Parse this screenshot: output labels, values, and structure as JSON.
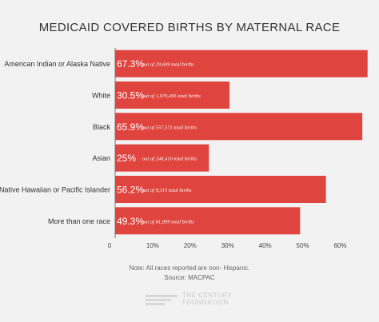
{
  "chart_data": {
    "type": "bar",
    "orientation": "horizontal",
    "title": "MEDICAID COVERED BIRTHS BY MATERNAL RACE",
    "categories": [
      "American Indian or Alaska Native",
      "White",
      "Black",
      "Asian",
      "Native Hawaiian or Pacific Islander",
      "More than one race"
    ],
    "values": [
      67.3,
      30.5,
      65.9,
      25,
      56.2,
      49.3
    ],
    "value_labels": [
      "67.3%",
      "30.5%",
      "65.9%",
      "25%",
      "56.2%",
      "49.3%"
    ],
    "annotations": [
      "out of 29,699 total births",
      "out of 1,979,495 total births",
      "out of 557,571 total births",
      "out of 248,410 total births",
      "out of 9,315 total births",
      "out of 81,899 total births"
    ],
    "x_ticks": [
      0,
      10,
      20,
      30,
      40,
      50,
      60
    ],
    "x_tick_labels": [
      "0",
      "10%",
      "20%",
      "30%",
      "40%",
      "50%",
      "60%"
    ],
    "xlim": [
      0,
      68
    ],
    "grid": false,
    "bar_color": "#e0443e",
    "label_color": "#ffffff"
  },
  "notes": {
    "line1": "Note: All races reported are non- Hispanic.",
    "line2": "Source: MACPAC"
  },
  "brand": {
    "line1": "THE CENTURY",
    "line2": "FOUNDATION"
  }
}
